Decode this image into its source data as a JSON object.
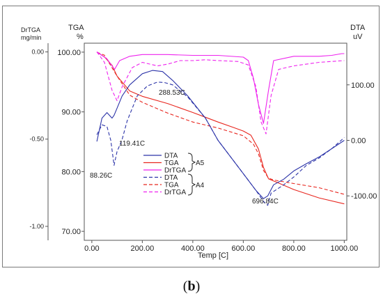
{
  "caption": {
    "open": "(",
    "letter": "b",
    "close": ")"
  },
  "chart_data": {
    "type": "line",
    "title": "",
    "xlabel": "Temp  [C]",
    "x_ticks": [
      "0.00",
      "200.00",
      "400.00",
      "600.00",
      "800.00",
      "1000.00"
    ],
    "xlim": [
      -30,
      1010
    ],
    "axes": {
      "tga": {
        "title": "TGA",
        "unit": "%",
        "ylim": [
          68.5,
          101.5
        ],
        "ticks": [
          {
            "v": 100,
            "label": "100.00"
          },
          {
            "v": 90,
            "label": "90.00"
          },
          {
            "v": 80,
            "label": "80.00"
          },
          {
            "v": 70,
            "label": "70.00"
          }
        ]
      },
      "dta": {
        "title": "DTA",
        "unit": "uV",
        "ylim": [
          -180,
          175
        ],
        "ticks": [
          {
            "v": 100,
            "label": "100.00"
          },
          {
            "v": 0,
            "label": "0.00"
          },
          {
            "v": -100,
            "label": "-100.00"
          }
        ]
      },
      "drtga": {
        "title": "DrTGA",
        "unit": "mg/min",
        "ylim": [
          -1.08,
          0.05
        ],
        "ticks": [
          {
            "v": 0,
            "label": "0.00"
          },
          {
            "v": -0.5,
            "label": "-0.50"
          },
          {
            "v": -1,
            "label": "-1.00"
          }
        ]
      }
    },
    "colors": {
      "dta": "#2b33a8",
      "tga": "#e8261e",
      "drtga": "#ee22ee"
    },
    "legend": {
      "entries": [
        {
          "label": "DTA",
          "series": "dta",
          "dash": false
        },
        {
          "label": "TGA",
          "series": "tga",
          "dash": false
        },
        {
          "label": "DrTGA",
          "series": "drtga",
          "dash": false
        },
        {
          "label": "DTA",
          "series": "dta",
          "dash": true
        },
        {
          "label": "TGA",
          "series": "tga",
          "dash": true
        },
        {
          "label": "DrTGA",
          "series": "drtga",
          "dash": true
        }
      ],
      "groups": [
        "A5",
        "A4"
      ]
    },
    "annotations": [
      "288.53C",
      "119.41C",
      "88.26C",
      "696.84C"
    ],
    "series": [
      {
        "name": "A5",
        "kind": "tga",
        "dash": false,
        "x": [
          20,
          50,
          80,
          100,
          150,
          200,
          300,
          400,
          450,
          500,
          560,
          600,
          630,
          660,
          680,
          700,
          750,
          800,
          900,
          1000
        ],
        "y": [
          100.0,
          99.2,
          97.8,
          96.0,
          93.5,
          92.6,
          91.4,
          89.9,
          89.1,
          88.3,
          87.4,
          86.8,
          86.1,
          83.8,
          80.7,
          78.8,
          77.9,
          77.0,
          75.6,
          74.6
        ]
      },
      {
        "name": "A4",
        "kind": "tga",
        "dash": true,
        "x": [
          20,
          50,
          100,
          150,
          200,
          300,
          400,
          500,
          600,
          640,
          660,
          680,
          700,
          720,
          800,
          900,
          1000
        ],
        "y": [
          100.0,
          99.5,
          96.0,
          92.8,
          91.6,
          89.8,
          88.3,
          87.3,
          86.0,
          84.6,
          83.0,
          80.2,
          78.9,
          78.6,
          78.0,
          77.3,
          76.2
        ]
      },
      {
        "name": "A5",
        "kind": "dta",
        "dash": false,
        "x": [
          20,
          40,
          60,
          80,
          88,
          100,
          120,
          150,
          200,
          240,
          280,
          320,
          380,
          450,
          500,
          550,
          600,
          650,
          680,
          697,
          720,
          760,
          800,
          850,
          900,
          950,
          1000
        ],
        "y": [
          -2,
          40,
          50,
          40,
          45,
          58,
          80,
          100,
          120,
          126,
          124,
          108,
          80,
          40,
          0,
          -30,
          -60,
          -90,
          -105,
          -100,
          -80,
          -70,
          -55,
          -42,
          -30,
          -15,
          0
        ]
      },
      {
        "name": "A4",
        "kind": "dta",
        "dash": true,
        "x": [
          20,
          40,
          60,
          75,
          88,
          100,
          119,
          140,
          180,
          220,
          260,
          289,
          320,
          380,
          450,
          500,
          550,
          600,
          650,
          680,
          697,
          710,
          760,
          800,
          850,
          900,
          950,
          1000
        ],
        "y": [
          10,
          28,
          25,
          0,
          -45,
          -20,
          0,
          35,
          80,
          98,
          105,
          104,
          100,
          78,
          40,
          0,
          -30,
          -60,
          -90,
          -110,
          -117,
          -95,
          -80,
          -66,
          -45,
          -32,
          -15,
          5
        ]
      },
      {
        "name": "A5",
        "kind": "drtga",
        "dash": false,
        "x": [
          20,
          60,
          90,
          110,
          150,
          200,
          300,
          400,
          500,
          600,
          620,
          640,
          660,
          680,
          700,
          720,
          800,
          900,
          950,
          990,
          1000
        ],
        "y": [
          0.0,
          -0.04,
          -0.1,
          -0.05,
          -0.025,
          -0.015,
          -0.015,
          -0.02,
          -0.02,
          -0.03,
          -0.05,
          -0.15,
          -0.3,
          -0.41,
          -0.22,
          -0.05,
          -0.025,
          -0.025,
          -0.02,
          -0.01,
          -0.01
        ]
      },
      {
        "name": "A4",
        "kind": "drtga",
        "dash": true,
        "x": [
          20,
          50,
          80,
          100,
          120,
          160,
          200,
          260,
          300,
          350,
          400,
          450,
          500,
          580,
          620,
          650,
          670,
          690,
          710,
          740,
          800,
          900,
          1000
        ],
        "y": [
          0.0,
          -0.06,
          -0.22,
          -0.28,
          -0.2,
          -0.09,
          -0.06,
          -0.08,
          -0.07,
          -0.05,
          -0.05,
          -0.045,
          -0.05,
          -0.055,
          -0.075,
          -0.2,
          -0.4,
          -0.47,
          -0.25,
          -0.1,
          -0.08,
          -0.06,
          -0.05
        ]
      }
    ]
  }
}
